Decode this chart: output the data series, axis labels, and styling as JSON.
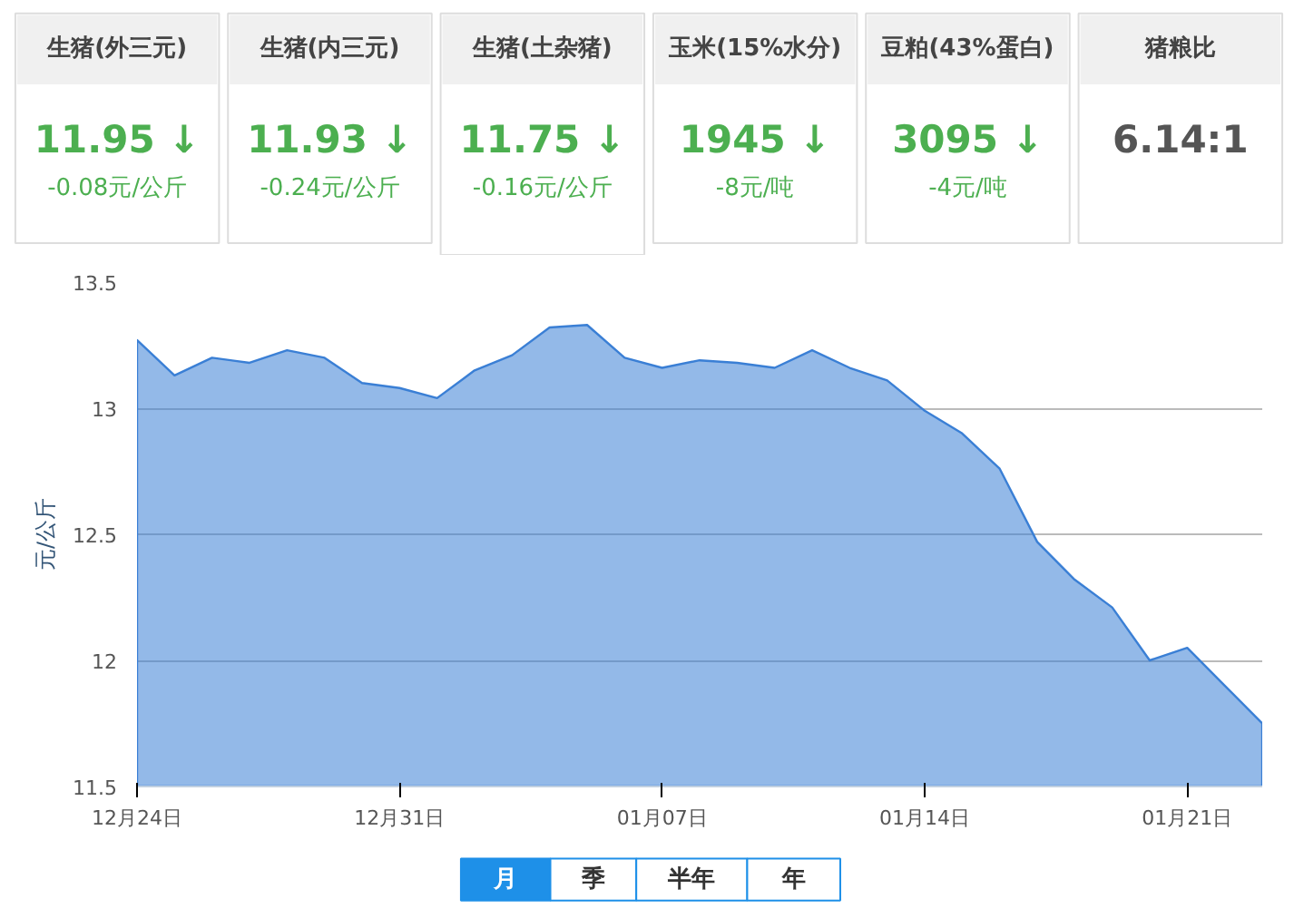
{
  "chart_data": [
    {
      "type": "other",
      "categories": [
        "生猪(外三元)",
        "生猪(内三元)",
        "生猪(土杂猪)",
        "玉米(15%水分)",
        "豆粕(43%蛋白)",
        "猪粮比"
      ],
      "annotations": [
        "11.95 ↓",
        "-0.08元/公斤",
        "11.93 ↓",
        "-0.24元/公斤",
        "11.75 ↓",
        "-0.16元/公斤",
        "1945 ↓",
        "-8元/吨",
        "3095 ↓",
        "-4元/吨",
        "6.14:1"
      ]
    },
    {
      "type": "area",
      "ylabel": "元/公斤",
      "color": "#3a7fd5",
      "grid": "y",
      "categories": [
        "12月24日",
        null,
        null,
        null,
        null,
        null,
        null,
        "12月31日",
        null,
        null,
        null,
        null,
        null,
        null,
        "01月07日",
        null,
        null,
        null,
        null,
        null,
        null,
        "01月14日",
        null,
        null,
        null,
        null,
        null,
        null,
        "01月21日",
        null,
        null
      ],
      "values": [
        13.27,
        13.13,
        13.2,
        13.18,
        13.23,
        13.2,
        13.1,
        13.08,
        13.04,
        13.15,
        13.21,
        13.32,
        13.33,
        13.2,
        13.16,
        13.19,
        13.18,
        13.16,
        13.23,
        13.16,
        13.11,
        12.99,
        12.9,
        12.76,
        12.47,
        12.32,
        12.21,
        12.0,
        12.05,
        11.9,
        11.75
      ],
      "ylim": [
        11.5,
        13.5
      ],
      "yticks": [
        11.5,
        12,
        12.5,
        13,
        13.5
      ],
      "annotations": [
        "月",
        "季",
        "半年",
        "年"
      ]
    }
  ]
}
